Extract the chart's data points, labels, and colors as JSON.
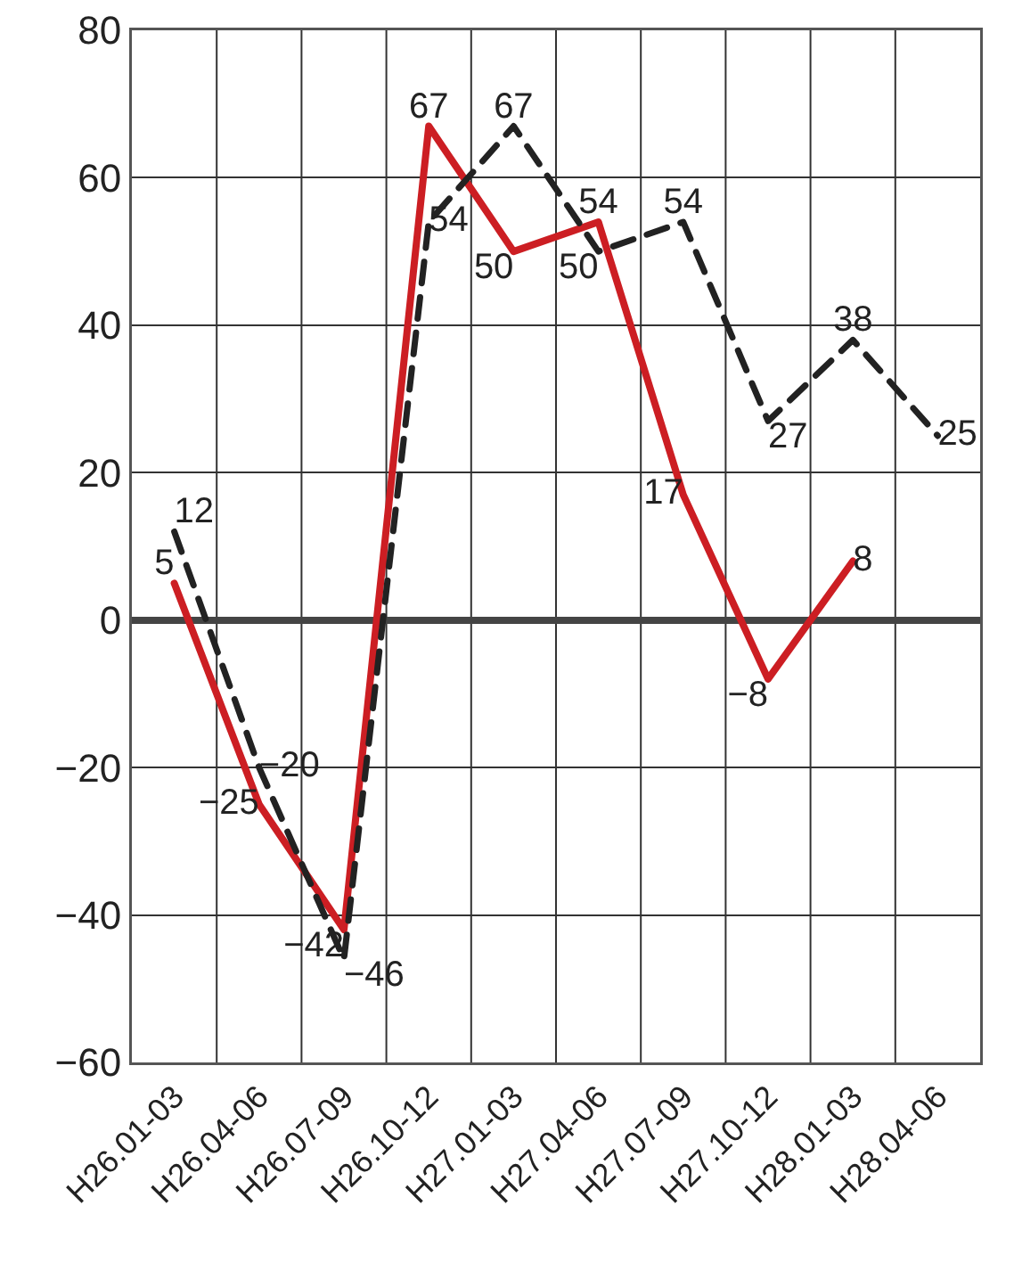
{
  "chart_data": {
    "type": "line",
    "categories": [
      "H26.01-03",
      "H26.04-06",
      "H26.07-09",
      "H26.10-12",
      "H27.01-03",
      "H27.04-06",
      "H27.07-09",
      "H27.10-12",
      "H28.01-03",
      "H28.04-06"
    ],
    "series": [
      {
        "color": "#cc1e23",
        "line_style": "solid",
        "values": [
          5,
          -25,
          -42,
          67,
          50,
          54,
          17,
          -8,
          8,
          null
        ]
      },
      {
        "color": "#222222",
        "line_style": "dashed",
        "values": [
          12,
          -20,
          -46,
          54,
          67,
          50,
          54,
          27,
          38,
          25
        ]
      }
    ],
    "ylim": [
      -60,
      80
    ],
    "yticks": [
      -60,
      -40,
      -20,
      0,
      20,
      40,
      60,
      80
    ],
    "grid": true,
    "data_labels": true
  }
}
